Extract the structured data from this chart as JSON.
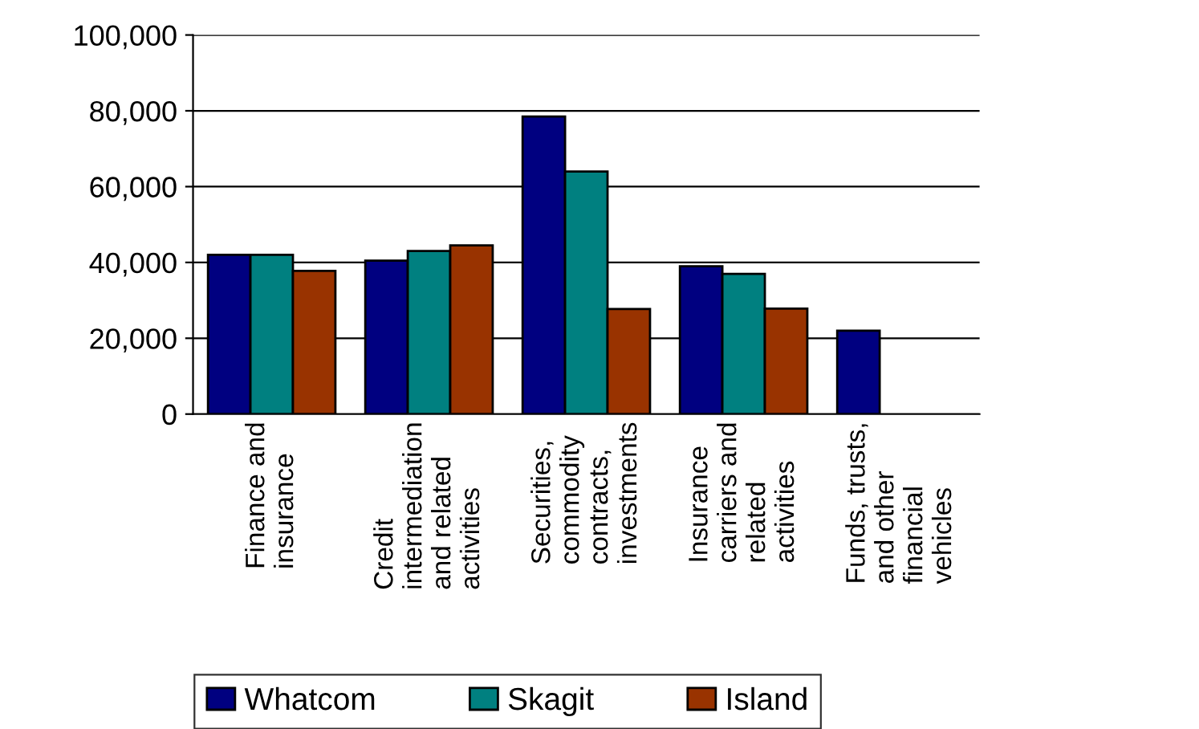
{
  "chart_data": {
    "type": "bar",
    "categories": [
      "Finance and\ninsurance",
      "Credit\nintermediation\nand related\nactivities",
      "Securities,\ncommodity\ncontracts,\ninvestments",
      "Insurance\ncarriers and\nrelated\nactivities",
      "Funds, trusts,\nand other\nfinancial\nvehicles"
    ],
    "series": [
      {
        "name": "Whatcom",
        "color": "#000080",
        "values": [
          42000,
          40500,
          78500,
          39000,
          22000
        ]
      },
      {
        "name": "Skagit",
        "color": "#008080",
        "values": [
          42000,
          43000,
          64000,
          37000,
          null
        ]
      },
      {
        "name": "Island",
        "color": "#993300",
        "values": [
          37800,
          44500,
          27700,
          27800,
          null
        ]
      }
    ],
    "ylim": [
      0,
      100000
    ],
    "yticks": [
      0,
      {
        "value": 20000,
        "label": "20,000"
      },
      {
        "value": 40000,
        "label": "40,000"
      },
      {
        "value": 60000,
        "label": "60,000"
      },
      {
        "value": 80000,
        "label": "80,000"
      },
      {
        "value": 100000,
        "label": "100,000"
      }
    ],
    "grid": "y",
    "legend": "bottom"
  }
}
